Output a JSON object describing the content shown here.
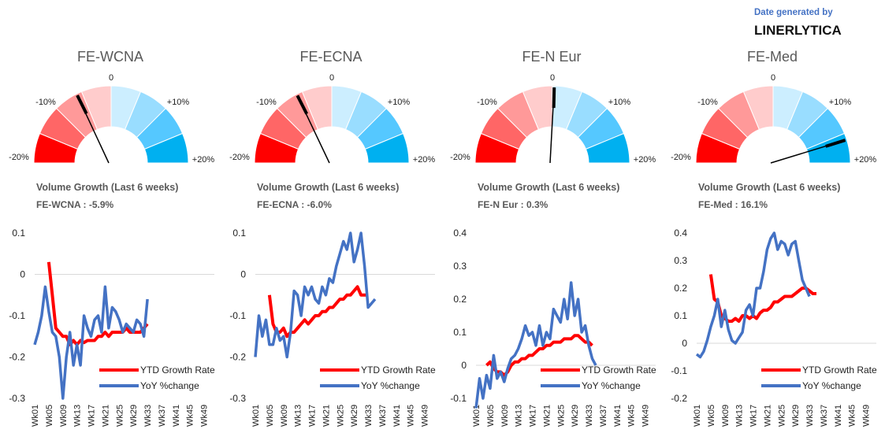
{
  "credit": {
    "label": "Date generated by",
    "brand": "LINERLYTICA"
  },
  "gauge_colors": [
    "#ff0000",
    "#ff6666",
    "#ff9999",
    "#ffcccc",
    "#cceeff",
    "#99ddff",
    "#55c8ff",
    "#00b0f0"
  ],
  "week_ticks": [
    "Wk01",
    "Wk05",
    "Wk09",
    "Wk13",
    "Wk17",
    "Wk21",
    "Wk25",
    "Wk29",
    "Wk33",
    "Wk37",
    "Wk41",
    "Wk45",
    "Wk49"
  ],
  "legend": {
    "ytd": "YTD Growth Rate",
    "yoy": "YoY %change",
    "ytd_color": "#ff0000",
    "yoy_color": "#4472c4"
  },
  "panels": [
    {
      "title": "FE-WCNA",
      "vg_label": "Volume Growth (Last 6 weeks)",
      "vg_value": "FE-WCNA : -5.9%",
      "gauge_value": -5.9,
      "gauge_labels": {
        "m20": "-20%",
        "m10": "-10%",
        "zero": "0",
        "p10": "+10%",
        "p20": "+20%"
      }
    },
    {
      "title": "FE-ECNA",
      "vg_label": "Volume Growth (Last 6 weeks)",
      "vg_value": "FE-ECNA : -6.0%",
      "gauge_value": -6.0,
      "gauge_labels": {
        "m20": "-20%",
        "m10": "-10%",
        "zero": "0",
        "p10": "+10%",
        "p20": "+20%"
      }
    },
    {
      "title": "FE-N Eur",
      "vg_label": "Volume Growth (Last 6 weeks)",
      "vg_value": "FE-N Eur : 0.3%",
      "gauge_value": 0.3,
      "gauge_labels": {
        "m20": "-20%",
        "m10": "-10%",
        "zero": "0",
        "p10": "+10%",
        "p20": "+20%"
      }
    },
    {
      "title": "FE-Med",
      "vg_label": "Volume Growth (Last 6 weeks)",
      "vg_value": "FE-Med : 16.1%",
      "gauge_value": 16.1,
      "gauge_labels": {
        "m20": "-20%",
        "m10": "-10%",
        "zero": "0",
        "p10": "+10%",
        "p20": "+20%"
      }
    }
  ],
  "chart_data": [
    {
      "type": "line",
      "title": "FE-WCNA",
      "ylim": [
        -0.3,
        0.1
      ],
      "yticks": [
        0.1,
        0,
        -0.1,
        -0.2,
        -0.3
      ],
      "ytick_labels": [
        "0.1",
        "0",
        "-0.1",
        "-0.2",
        "-0.3"
      ],
      "x_ticks": [
        "Wk01",
        "Wk05",
        "Wk09",
        "Wk13",
        "Wk17",
        "Wk21",
        "Wk25",
        "Wk29",
        "Wk33",
        "Wk37",
        "Wk41",
        "Wk45",
        "Wk49"
      ],
      "series": [
        {
          "name": "YTD Growth Rate",
          "x_start": 5,
          "values": [
            0.03,
            -0.05,
            -0.13,
            -0.14,
            -0.15,
            -0.15,
            -0.17,
            -0.16,
            -0.17,
            -0.16,
            -0.165,
            -0.16,
            -0.16,
            -0.16,
            -0.15,
            -0.15,
            -0.14,
            -0.15,
            -0.14,
            -0.14,
            -0.14,
            -0.14,
            -0.13,
            -0.14,
            -0.14,
            -0.14,
            -0.14,
            -0.13,
            -0.12
          ]
        },
        {
          "name": "YoY %change",
          "x_start": 1,
          "values": [
            -0.17,
            -0.14,
            -0.1,
            -0.03,
            -0.09,
            -0.14,
            -0.15,
            -0.2,
            -0.3,
            -0.2,
            -0.14,
            -0.22,
            -0.17,
            -0.22,
            -0.1,
            -0.13,
            -0.15,
            -0.11,
            -0.1,
            -0.14,
            -0.03,
            -0.13,
            -0.08,
            -0.09,
            -0.11,
            -0.14,
            -0.12,
            -0.13,
            -0.14,
            -0.11,
            -0.12,
            -0.15,
            -0.06
          ]
        }
      ]
    },
    {
      "type": "line",
      "title": "FE-ECNA",
      "ylim": [
        -0.3,
        0.1
      ],
      "yticks": [
        0.1,
        0,
        -0.1,
        -0.2,
        -0.3
      ],
      "ytick_labels": [
        "0.1",
        "0",
        "-0.1",
        "-0.2",
        "-0.3"
      ],
      "x_ticks": [
        "Wk01",
        "Wk05",
        "Wk09",
        "Wk13",
        "Wk17",
        "Wk21",
        "Wk25",
        "Wk29",
        "Wk33",
        "Wk37",
        "Wk41",
        "Wk45",
        "Wk49"
      ],
      "series": [
        {
          "name": "YTD Growth Rate",
          "x_start": 5,
          "values": [
            -0.05,
            -0.12,
            -0.14,
            -0.14,
            -0.13,
            -0.15,
            -0.14,
            -0.14,
            -0.13,
            -0.12,
            -0.11,
            -0.12,
            -0.11,
            -0.1,
            -0.1,
            -0.09,
            -0.09,
            -0.08,
            -0.08,
            -0.07,
            -0.06,
            -0.06,
            -0.05,
            -0.05,
            -0.04,
            -0.03,
            -0.05,
            -0.05,
            -0.05
          ]
        },
        {
          "name": "YoY %change",
          "x_start": 1,
          "values": [
            -0.2,
            -0.1,
            -0.15,
            -0.11,
            -0.17,
            -0.17,
            -0.13,
            -0.16,
            -0.15,
            -0.2,
            -0.14,
            -0.04,
            -0.05,
            -0.1,
            -0.03,
            -0.05,
            -0.03,
            -0.06,
            -0.07,
            -0.03,
            -0.05,
            -0.01,
            -0.02,
            0.02,
            0.05,
            0.08,
            0.06,
            0.1,
            0.03,
            0.06,
            0.1,
            0.02,
            -0.08,
            -0.07,
            -0.06
          ]
        }
      ]
    },
    {
      "type": "line",
      "title": "FE-N Eur",
      "ylim": [
        -0.1,
        0.4
      ],
      "yticks": [
        0.4,
        0.3,
        0.2,
        0.1,
        0,
        -0.1
      ],
      "ytick_labels": [
        "0.4",
        "0.3",
        "0.2",
        "0.1",
        "0",
        "-0.1"
      ],
      "x_ticks": [
        "Wk01",
        "Wk05",
        "Wk09",
        "Wk13",
        "Wk17",
        "Wk21",
        "Wk25",
        "Wk29",
        "Wk33",
        "Wk37",
        "Wk41",
        "Wk45",
        "Wk49"
      ],
      "series": [
        {
          "name": "YTD Growth Rate",
          "x_start": 4,
          "values": [
            0,
            0.01,
            -0.01,
            -0.02,
            -0.02,
            -0.03,
            -0.02,
            0,
            0.01,
            0.01,
            0.02,
            0.02,
            0.03,
            0.03,
            0.04,
            0.05,
            0.05,
            0.06,
            0.06,
            0.07,
            0.07,
            0.07,
            0.08,
            0.08,
            0.08,
            0.09,
            0.09,
            0.08,
            0.07,
            0.07,
            0.06
          ]
        },
        {
          "name": "YoY %change",
          "x_start": 1,
          "values": [
            -0.13,
            -0.04,
            -0.1,
            -0.03,
            -0.07,
            0.03,
            -0.04,
            -0.02,
            -0.05,
            -0.01,
            0.02,
            0.03,
            0.05,
            0.08,
            0.12,
            0.09,
            0.1,
            0.06,
            0.12,
            0.06,
            0.1,
            0.08,
            0.17,
            0.15,
            0.13,
            0.2,
            0.14,
            0.25,
            0.15,
            0.2,
            0.1,
            0.12,
            0.06,
            0.02,
            0
          ]
        }
      ]
    },
    {
      "type": "line",
      "title": "FE-Med",
      "ylim": [
        -0.2,
        0.4
      ],
      "yticks": [
        0.4,
        0.3,
        0.2,
        0.1,
        0,
        -0.1,
        -0.2
      ],
      "ytick_labels": [
        "0.4",
        "0.3",
        "0.2",
        "0.1",
        "0",
        "-0.1",
        "-0.2"
      ],
      "x_ticks": [
        "Wk01",
        "Wk05",
        "Wk09",
        "Wk13",
        "Wk17",
        "Wk21",
        "Wk25",
        "Wk29",
        "Wk33",
        "Wk37",
        "Wk41",
        "Wk45",
        "Wk49"
      ],
      "series": [
        {
          "name": "YTD Growth Rate",
          "x_start": 5,
          "values": [
            0.25,
            0.16,
            0.15,
            0.1,
            0.09,
            0.08,
            0.08,
            0.09,
            0.08,
            0.1,
            0.1,
            0.09,
            0.1,
            0.09,
            0.11,
            0.12,
            0.12,
            0.13,
            0.15,
            0.15,
            0.16,
            0.17,
            0.17,
            0.17,
            0.18,
            0.19,
            0.2,
            0.2,
            0.19,
            0.18,
            0.18
          ]
        },
        {
          "name": "YoY %change",
          "x_start": 1,
          "values": [
            -0.04,
            -0.05,
            -0.03,
            0.01,
            0.06,
            0.1,
            0.16,
            0.06,
            0.12,
            0.05,
            0.01,
            0,
            0.02,
            0.04,
            0.12,
            0.14,
            0.1,
            0.2,
            0.2,
            0.26,
            0.34,
            0.38,
            0.4,
            0.34,
            0.37,
            0.36,
            0.32,
            0.36,
            0.37,
            0.3,
            0.23,
            0.2,
            0.17
          ]
        }
      ]
    }
  ]
}
